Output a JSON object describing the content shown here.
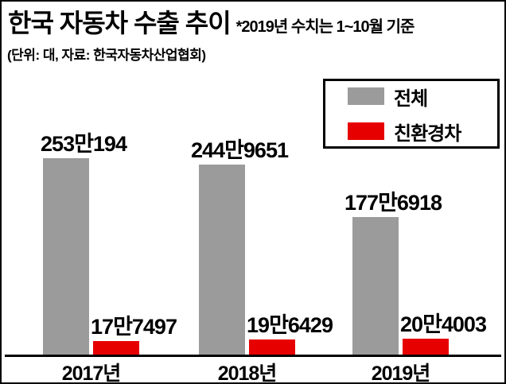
{
  "header": {
    "title": "한국 자동차 수출 추이",
    "note": "*2019년 수치는 1~10월 기준",
    "subtitle": "(단위: 대, 자료: 한국자동차산업협회)"
  },
  "legend": {
    "items": [
      {
        "label": "전체",
        "color": "#9b9b9b"
      },
      {
        "label": "친환경차",
        "color": "#e60000"
      }
    ]
  },
  "chart_data": {
    "type": "bar",
    "title": "한국 자동차 수출 추이",
    "note": "*2019년 수치는 1~10월 기준",
    "unit_source_label": "(단위: 대, 자료: 한국자동차산업협회)",
    "categories": [
      "2017년",
      "2018년",
      "2019년"
    ],
    "series": [
      {
        "name": "전체",
        "color": "#9b9b9b",
        "values": [
          2530194,
          2449651,
          1776918
        ],
        "value_labels": [
          "253만194",
          "244만9651",
          "177만6918"
        ]
      },
      {
        "name": "친환경차",
        "color": "#e60000",
        "values": [
          177497,
          196429,
          204003
        ],
        "value_labels": [
          "17만7497",
          "19만6429",
          "20만4003"
        ]
      }
    ],
    "ylim": [
      0,
      2530194
    ],
    "grid": false,
    "legend_position": "top-right"
  }
}
